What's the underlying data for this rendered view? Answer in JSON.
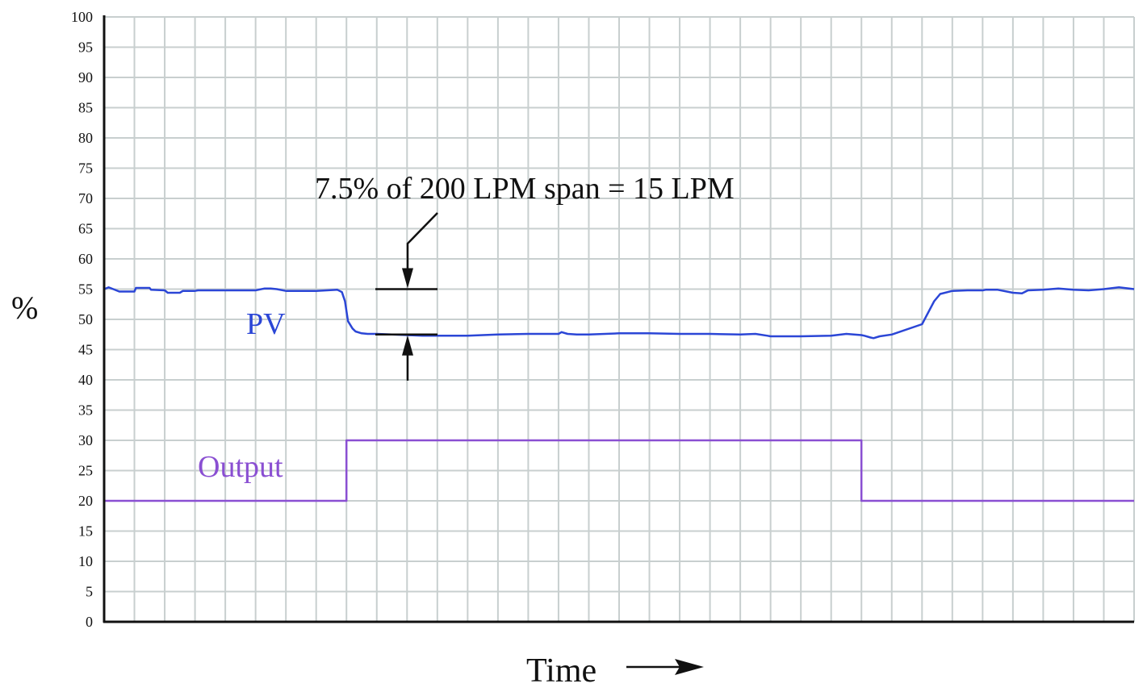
{
  "chart_data": {
    "type": "line",
    "title": "",
    "xlabel": "Time",
    "ylabel": "%",
    "xlim": [
      0,
      34
    ],
    "ylim": [
      0,
      100
    ],
    "y_ticks": [
      0,
      5,
      10,
      15,
      20,
      25,
      30,
      35,
      40,
      45,
      50,
      55,
      60,
      65,
      70,
      75,
      80,
      85,
      90,
      95,
      100
    ],
    "grid": true,
    "legend": "none",
    "colors": {
      "pv": "#2b46d6",
      "output": "#8a4fd2",
      "grid": "#c8cfcf"
    },
    "series": [
      {
        "name": "PV",
        "x": [
          0,
          0.15,
          0.3,
          0.5,
          1,
          1.05,
          1.5,
          1.55,
          2,
          2.1,
          2.5,
          2.6,
          3,
          3.1,
          4,
          5,
          5.3,
          5.5,
          5.7,
          6,
          7,
          7.7,
          7.85,
          7.95,
          8.05,
          8.2,
          8.3,
          8.5,
          8.7,
          9,
          9.5,
          10,
          10.5,
          11,
          12,
          13,
          14,
          15,
          15.1,
          15.3,
          15.6,
          16,
          17,
          18,
          19,
          20,
          21,
          21.5,
          21.9,
          22,
          23,
          24,
          24.5,
          25,
          25.1,
          25.3,
          25.4,
          25.6,
          26,
          27,
          27.4,
          27.6,
          28,
          28.5,
          29,
          29.1,
          29.5,
          30,
          30.3,
          30.5,
          31,
          31.5,
          32,
          32.5,
          33,
          33.5,
          34
        ],
        "y": [
          55,
          55.3,
          55,
          54.6,
          54.6,
          55.2,
          55.2,
          54.9,
          54.8,
          54.4,
          54.4,
          54.7,
          54.7,
          54.8,
          54.8,
          54.8,
          55.1,
          55.1,
          55,
          54.7,
          54.7,
          54.9,
          54.5,
          53,
          49.7,
          48.5,
          48,
          47.7,
          47.6,
          47.6,
          47.5,
          47.4,
          47.3,
          47.3,
          47.3,
          47.5,
          47.6,
          47.6,
          47.9,
          47.6,
          47.5,
          47.5,
          47.7,
          47.7,
          47.6,
          47.6,
          47.5,
          47.6,
          47.3,
          47.2,
          47.2,
          47.3,
          47.6,
          47.4,
          47.3,
          47,
          46.9,
          47.2,
          47.5,
          49.2,
          53,
          54.2,
          54.7,
          54.8,
          54.8,
          54.9,
          54.9,
          54.4,
          54.3,
          54.8,
          54.9,
          55.1,
          54.9,
          54.8,
          55,
          55.3,
          55
        ],
        "label": "PV"
      },
      {
        "name": "Output",
        "x": [
          0,
          8,
          8,
          25,
          25,
          34
        ],
        "y": [
          20,
          20,
          30,
          30,
          20,
          20
        ],
        "label": "Output"
      }
    ],
    "annotations": [
      {
        "text": "7.5% of 200 LPM span = 15 LPM",
        "upper_level": 55,
        "lower_level": 47.5
      }
    ]
  }
}
